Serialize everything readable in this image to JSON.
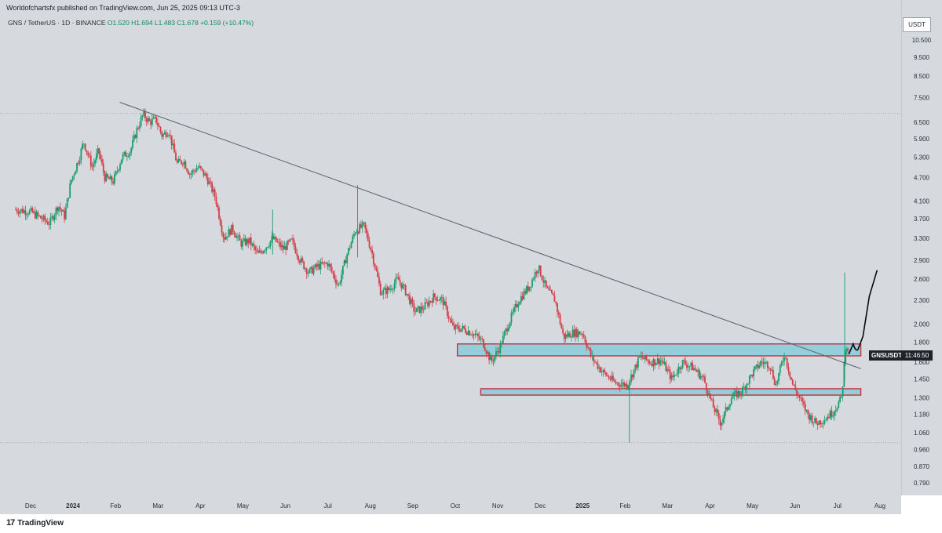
{
  "header": {
    "published": "Worldofchartsfx published on TradingView.com, Jun 25, 2025 09:13 UTC-3",
    "symbol": "GNS / TetherUS · 1D · BINANCE",
    "ohlc": "O1.520 H1.694 L1.483 C1.678 +0.159 (+10.47%)"
  },
  "axis": {
    "currency": "USDT"
  },
  "tag": {
    "ticker": "GNSUSDT",
    "timer": "11:46:50"
  },
  "footer": {
    "brand": "TradingView",
    "logo_mark": "17"
  },
  "colors": {
    "up": "#1a9c6c",
    "down": "#d43e48",
    "zone_fill": "#7ec9d8",
    "zone_border": "#c4323c",
    "trendline": "#5b5e66",
    "bg": "#d6d9de"
  },
  "chart_data": {
    "type": "candlestick",
    "title": "GNS / TetherUS · 1D · BINANCE",
    "scale": "log",
    "ylim": [
      0.75,
      11.5
    ],
    "price_ticks": [
      10.5,
      9.5,
      8.5,
      7.5,
      6.5,
      5.9,
      5.3,
      4.7,
      4.1,
      3.7,
      3.3,
      2.9,
      2.6,
      2.3,
      2.0,
      1.8,
      1.6,
      1.45,
      1.3,
      1.18,
      1.06,
      0.96,
      0.87,
      0.79
    ],
    "price_tick_labels": [
      "10.500",
      "9.500",
      "8.500",
      "7.500",
      "6.500",
      "5.900",
      "5.300",
      "4.700",
      "4.100",
      "3.700",
      "3.300",
      "2.900",
      "2.600",
      "2.300",
      "2.000",
      "1.800",
      "1.600",
      "1.450",
      "1.300",
      "1.180",
      "1.060",
      "0.960",
      "0.870",
      "0.790"
    ],
    "time_labels": [
      {
        "label": "Dec",
        "m": 0.35,
        "bold": false
      },
      {
        "label": "2024",
        "m": 1.35,
        "bold": true
      },
      {
        "label": "Feb",
        "m": 2.35,
        "bold": false
      },
      {
        "label": "Mar",
        "m": 3.35,
        "bold": false
      },
      {
        "label": "Apr",
        "m": 4.35,
        "bold": false
      },
      {
        "label": "May",
        "m": 5.35,
        "bold": false
      },
      {
        "label": "Jun",
        "m": 6.35,
        "bold": false
      },
      {
        "label": "Jul",
        "m": 7.35,
        "bold": false
      },
      {
        "label": "Aug",
        "m": 8.35,
        "bold": false
      },
      {
        "label": "Sep",
        "m": 9.35,
        "bold": false
      },
      {
        "label": "Oct",
        "m": 10.35,
        "bold": false
      },
      {
        "label": "Nov",
        "m": 11.35,
        "bold": false
      },
      {
        "label": "Dec",
        "m": 12.35,
        "bold": false
      },
      {
        "label": "2025",
        "m": 13.35,
        "bold": true
      },
      {
        "label": "Feb",
        "m": 14.35,
        "bold": false
      },
      {
        "label": "Mar",
        "m": 15.35,
        "bold": false
      },
      {
        "label": "Apr",
        "m": 16.35,
        "bold": false
      },
      {
        "label": "May",
        "m": 17.35,
        "bold": false
      },
      {
        "label": "Jun",
        "m": 18.35,
        "bold": false
      },
      {
        "label": "Jul",
        "m": 19.35,
        "bold": false
      },
      {
        "label": "Aug",
        "m": 20.35,
        "bold": false
      }
    ],
    "price_path": [
      [
        0.0,
        3.9
      ],
      [
        0.35,
        3.85
      ],
      [
        0.8,
        3.6
      ],
      [
        1.0,
        4.0
      ],
      [
        1.15,
        3.75
      ],
      [
        1.3,
        4.6
      ],
      [
        1.5,
        5.3
      ],
      [
        1.6,
        5.8
      ],
      [
        1.8,
        5.0
      ],
      [
        1.95,
        5.5
      ],
      [
        2.1,
        4.7
      ],
      [
        2.3,
        4.6
      ],
      [
        2.5,
        5.3
      ],
      [
        2.7,
        5.5
      ],
      [
        2.85,
        6.2
      ],
      [
        3.0,
        6.8
      ],
      [
        3.15,
        6.5
      ],
      [
        3.3,
        6.6
      ],
      [
        3.45,
        6.0
      ],
      [
        3.6,
        6.2
      ],
      [
        3.8,
        5.1
      ],
      [
        3.95,
        5.2
      ],
      [
        4.1,
        4.8
      ],
      [
        4.3,
        5.0
      ],
      [
        4.5,
        4.7
      ],
      [
        4.7,
        4.2
      ],
      [
        4.9,
        3.3
      ],
      [
        5.1,
        3.5
      ],
      [
        5.3,
        3.2
      ],
      [
        5.5,
        3.25
      ],
      [
        5.7,
        3.0
      ],
      [
        5.9,
        3.15
      ],
      [
        6.05,
        3.3
      ],
      [
        6.3,
        3.1
      ],
      [
        6.5,
        3.25
      ],
      [
        6.7,
        2.9
      ],
      [
        6.9,
        2.7
      ],
      [
        7.1,
        2.8
      ],
      [
        7.35,
        2.85
      ],
      [
        7.6,
        2.5
      ],
      [
        7.8,
        3.0
      ],
      [
        8.0,
        3.45
      ],
      [
        8.2,
        3.55
      ],
      [
        8.4,
        3.0
      ],
      [
        8.6,
        2.4
      ],
      [
        8.8,
        2.45
      ],
      [
        9.0,
        2.6
      ],
      [
        9.2,
        2.4
      ],
      [
        9.4,
        2.15
      ],
      [
        9.6,
        2.2
      ],
      [
        9.85,
        2.35
      ],
      [
        10.05,
        2.3
      ],
      [
        10.3,
        1.95
      ],
      [
        10.5,
        1.95
      ],
      [
        10.75,
        1.9
      ],
      [
        11.0,
        1.8
      ],
      [
        11.2,
        1.6
      ],
      [
        11.4,
        1.75
      ],
      [
        11.6,
        2.0
      ],
      [
        11.85,
        2.3
      ],
      [
        12.1,
        2.5
      ],
      [
        12.3,
        2.8
      ],
      [
        12.5,
        2.45
      ],
      [
        12.7,
        2.3
      ],
      [
        12.9,
        1.85
      ],
      [
        13.1,
        1.9
      ],
      [
        13.35,
        1.9
      ],
      [
        13.55,
        1.65
      ],
      [
        13.8,
        1.52
      ],
      [
        14.1,
        1.42
      ],
      [
        14.4,
        1.4
      ],
      [
        14.7,
        1.65
      ],
      [
        14.95,
        1.6
      ],
      [
        15.2,
        1.62
      ],
      [
        15.45,
        1.45
      ],
      [
        15.7,
        1.6
      ],
      [
        15.95,
        1.55
      ],
      [
        16.2,
        1.45
      ],
      [
        16.4,
        1.25
      ],
      [
        16.6,
        1.12
      ],
      [
        16.85,
        1.3
      ],
      [
        17.1,
        1.35
      ],
      [
        17.35,
        1.5
      ],
      [
        17.55,
        1.6
      ],
      [
        17.75,
        1.58
      ],
      [
        17.9,
        1.4
      ],
      [
        18.1,
        1.68
      ],
      [
        18.3,
        1.4
      ],
      [
        18.45,
        1.3
      ],
      [
        18.65,
        1.18
      ],
      [
        18.85,
        1.12
      ],
      [
        19.05,
        1.15
      ],
      [
        19.25,
        1.2
      ],
      [
        19.45,
        1.3
      ],
      [
        19.55,
        1.8
      ],
      [
        19.62,
        1.68
      ]
    ],
    "trendline": {
      "from": [
        2.45,
        7.3
      ],
      "to": [
        19.9,
        1.54
      ]
    },
    "zones": [
      {
        "name": "upper resistance-support zone",
        "m_start": 10.4,
        "m_end": 19.9,
        "low": 1.66,
        "high": 1.78
      },
      {
        "name": "lower support zone",
        "m_start": 10.95,
        "m_end": 19.9,
        "low": 1.32,
        "high": 1.37
      }
    ],
    "projection": [
      [
        19.62,
        1.68
      ],
      [
        19.72,
        1.78
      ],
      [
        19.83,
        1.72
      ],
      [
        19.95,
        1.86
      ],
      [
        20.1,
        2.35
      ],
      [
        20.28,
        2.73
      ]
    ],
    "spike_wicks": [
      {
        "m": 14.45,
        "low": 1.0,
        "high": 1.45
      },
      {
        "m": 19.52,
        "low": 1.45,
        "high": 2.7
      },
      {
        "m": 8.05,
        "low": 2.95,
        "high": 4.5
      },
      {
        "m": 6.05,
        "low": 3.0,
        "high": 3.9
      }
    ]
  }
}
